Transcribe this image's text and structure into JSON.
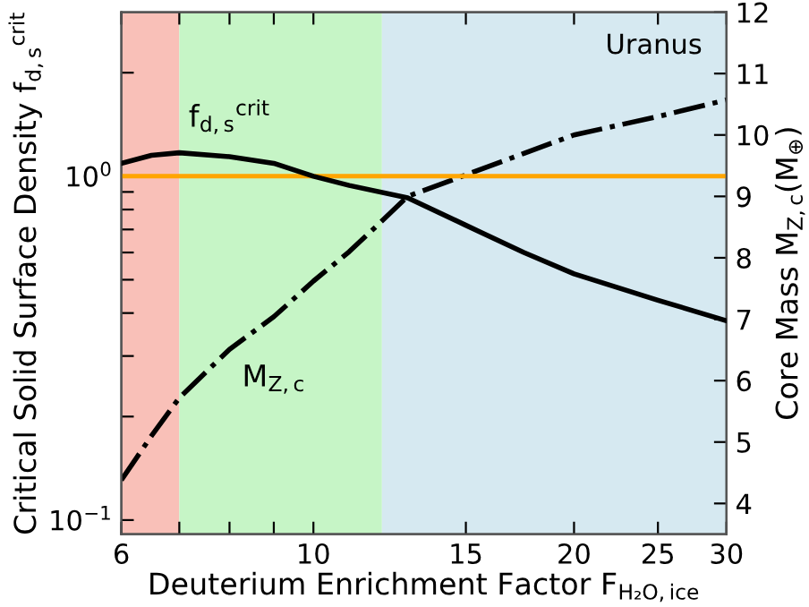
{
  "chart_data": {
    "type": "line",
    "xlabel": "Deuterium Enrichment Factor F$_{H₂O,ice}$",
    "ylabel": "Critical Solid Surface Density f$_{d,s}$$^{crit}$",
    "y2label": "Core Mass M$_{Z,c}$(M$_{⊕}$)",
    "annotations": [
      "Uranus"
    ],
    "log": "xy",
    "xlim": [
      6,
      30
    ],
    "xticks": [
      6,
      {
        "value": 7,
        "label": null
      },
      {
        "value": 8,
        "label": null
      },
      {
        "value": 9,
        "label": null
      },
      10,
      15,
      20,
      25,
      30
    ],
    "ylim": [
      0.091,
      3.0
    ],
    "yticks": [
      {
        "value": 0.1,
        "label": "10$^{−1}$"
      },
      {
        "value": 0.2,
        "label": null
      },
      {
        "value": 0.3,
        "label": null
      },
      {
        "value": 0.4,
        "label": null
      },
      {
        "value": 0.5,
        "label": null
      },
      {
        "value": 0.6,
        "label": null
      },
      {
        "value": 0.7,
        "label": null
      },
      {
        "value": 0.8,
        "label": null
      },
      {
        "value": 0.9,
        "label": null
      },
      {
        "value": 1,
        "label": "10$^{0}$"
      },
      {
        "value": 2,
        "label": null
      }
    ],
    "y2lim": [
      3.5,
      12
    ],
    "y2ticks": [
      4,
      5,
      6,
      7,
      8,
      9,
      10,
      11,
      12
    ],
    "grid": false,
    "legend": false,
    "series": [
      {
        "name": "f$_{d,s}$$^{crit}$",
        "color": "#000000",
        "line_style": "solid",
        "x": [
          6,
          6.5,
          7,
          8,
          9,
          10,
          11,
          12.85,
          15,
          17.5,
          20,
          25,
          30
        ],
        "values": [
          1.09,
          1.15,
          1.17,
          1.14,
          1.09,
          1.0,
          0.94,
          0.865,
          0.72,
          0.6,
          0.52,
          0.436,
          0.38
        ]
      },
      {
        "name": "M$_{Z,c}$",
        "color": "#000000",
        "line_style": "dashdot",
        "axis": "y2",
        "x": [
          6,
          6.5,
          7,
          8,
          9,
          10,
          11,
          12,
          12.85,
          15,
          17.5,
          20,
          25,
          30
        ],
        "values": [
          4.38,
          5.1,
          5.72,
          6.51,
          7.04,
          7.62,
          8.1,
          8.6,
          9.0,
          9.35,
          9.7,
          10.0,
          10.3,
          10.57
        ]
      }
    ],
    "ref_lines": [
      {
        "axis": "y",
        "value": 1,
        "color": "#ffa500"
      }
    ],
    "bands": [
      {
        "axis": "x",
        "from": 6,
        "to": 7,
        "color": "#f9c0b8"
      },
      {
        "axis": "x",
        "from": 7,
        "to": 12,
        "color": "#c6f5c6"
      },
      {
        "axis": "x",
        "from": 12,
        "to": 30,
        "color": "#d6e9f1"
      }
    ]
  }
}
